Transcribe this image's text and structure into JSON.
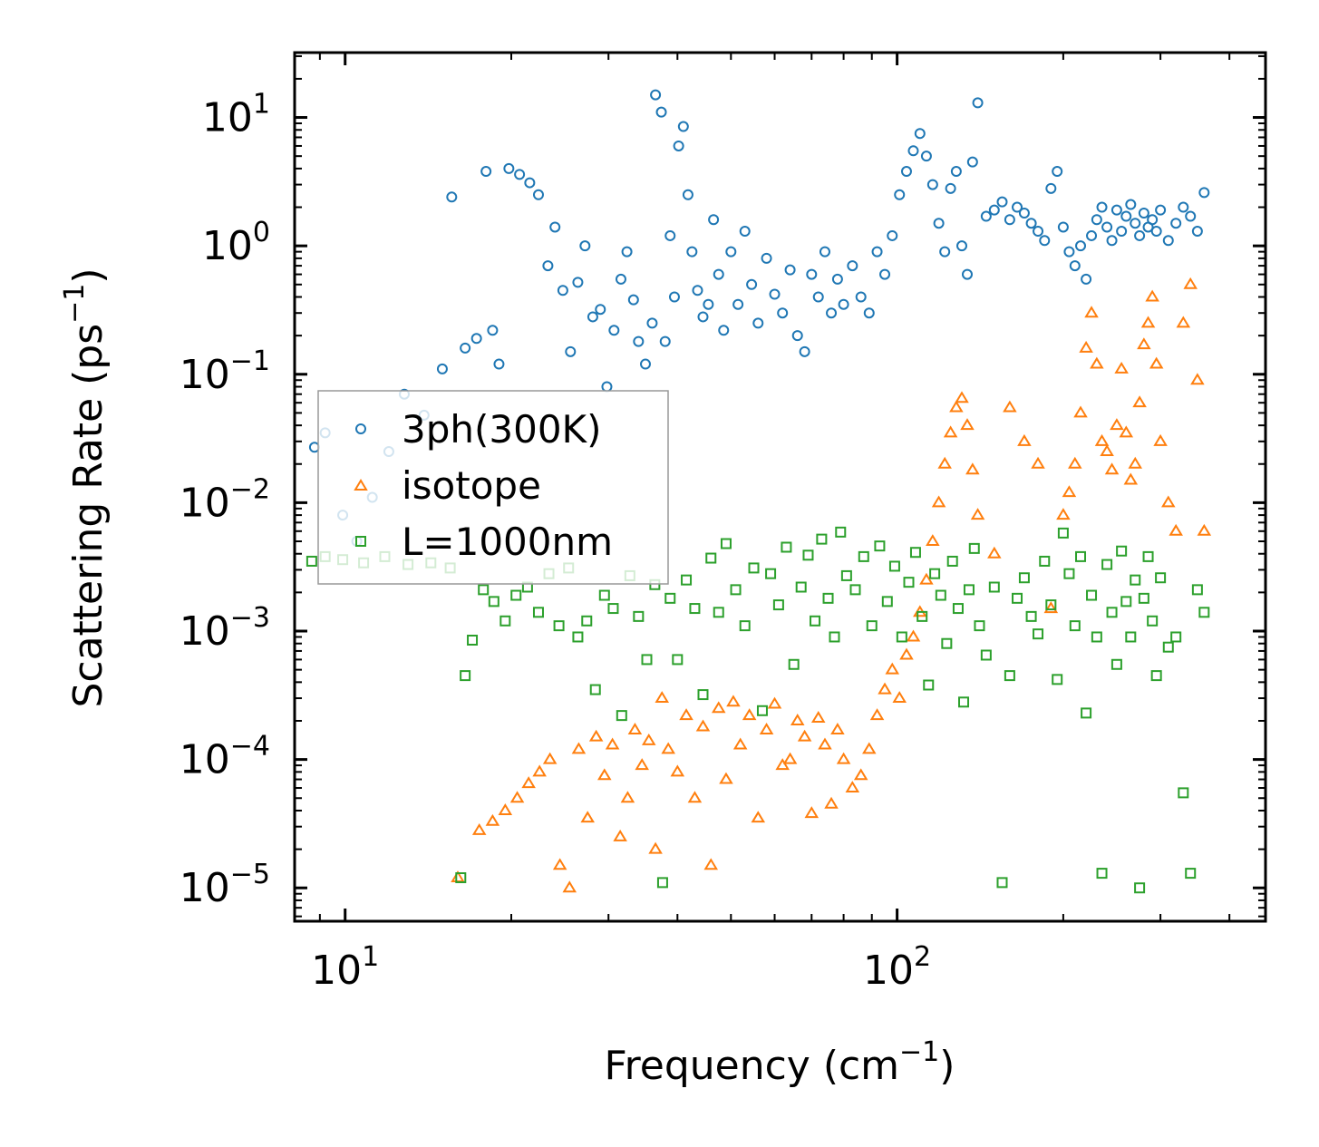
{
  "chart_data": {
    "type": "scatter",
    "title": "",
    "xlabel": "Frequency (cm",
    "xlabel_sup": "−1",
    "xlabel_end": ")",
    "ylabel": "Scattering Rate (ps",
    "ylabel_sup": "−1",
    "ylabel_end": ")",
    "xscale": "log",
    "yscale": "log",
    "xlim": [
      8.1,
      465
    ],
    "ylim": [
      5.5e-06,
      32
    ],
    "x_ticks": [
      {
        "value": 10,
        "base": "10",
        "exp": "1"
      },
      {
        "value": 100,
        "base": "10",
        "exp": "2"
      }
    ],
    "y_ticks": [
      {
        "value": 1e-05,
        "base": "10",
        "exp": "−5"
      },
      {
        "value": 0.0001,
        "base": "10",
        "exp": "−4"
      },
      {
        "value": 0.001,
        "base": "10",
        "exp": "−3"
      },
      {
        "value": 0.01,
        "base": "10",
        "exp": "−2"
      },
      {
        "value": 0.1,
        "base": "10",
        "exp": "−1"
      },
      {
        "value": 1,
        "base": "10",
        "exp": "0"
      },
      {
        "value": 10,
        "base": "10",
        "exp": "1"
      }
    ],
    "legend_position": "center-left",
    "series": [
      {
        "name": "3ph(300K)",
        "marker": "circle",
        "color": "#1f77b4",
        "x": [
          8.8,
          9.2,
          9.9,
          10.5,
          11.2,
          12.0,
          12.8,
          13.9,
          15.0,
          15.6,
          16.5,
          17.3,
          18.0,
          18.5,
          19.0,
          19.8,
          20.7,
          21.6,
          22.4,
          23.3,
          24.0,
          24.8,
          25.6,
          26.4,
          27.2,
          28.1,
          29.0,
          29.8,
          30.7,
          31.6,
          32.4,
          33.3,
          34.0,
          35.0,
          36.0,
          36.5,
          37.4,
          38.0,
          38.8,
          39.5,
          40.2,
          41.0,
          41.8,
          42.5,
          43.5,
          44.5,
          45.5,
          46.5,
          47.5,
          48.5,
          50.0,
          51.5,
          53.0,
          54.5,
          56.0,
          58.0,
          60.0,
          62.0,
          64.0,
          66.0,
          68.0,
          70.0,
          72.0,
          74.0,
          76.0,
          78.0,
          80.0,
          83.0,
          86.0,
          89.0,
          92.0,
          95.0,
          98.0,
          101.0,
          104.0,
          107.0,
          110.0,
          113.0,
          116.0,
          119.0,
          122.0,
          125.0,
          128.0,
          131.0,
          134.0,
          137.0,
          140.0,
          145.0,
          150.0,
          155.0,
          160.0,
          165.0,
          170.0,
          175.0,
          180.0,
          185.0,
          190.0,
          195.0,
          200.0,
          205.0,
          210.0,
          215.0,
          220.0,
          225.0,
          230.0,
          235.0,
          240.0,
          245.0,
          250.0,
          255.0,
          260.0,
          265.0,
          270.0,
          275.0,
          280.0,
          285.0,
          290.0,
          295.0,
          300.0,
          310.0,
          320.0,
          330.0,
          340.0,
          350.0,
          360.0
        ],
        "y": [
          0.027,
          0.035,
          0.008,
          0.005,
          0.011,
          0.025,
          0.07,
          0.048,
          0.11,
          2.4,
          0.16,
          0.19,
          3.8,
          0.22,
          0.12,
          4.0,
          3.6,
          3.1,
          2.5,
          0.7,
          1.4,
          0.45,
          0.15,
          0.52,
          1.0,
          0.28,
          0.32,
          0.08,
          0.22,
          0.55,
          0.9,
          0.38,
          0.18,
          0.12,
          0.25,
          15.0,
          11.0,
          0.18,
          1.2,
          0.4,
          6.0,
          8.5,
          2.5,
          0.9,
          0.45,
          0.28,
          0.35,
          1.6,
          0.6,
          0.22,
          0.9,
          0.35,
          1.3,
          0.5,
          0.25,
          0.8,
          0.42,
          0.3,
          0.65,
          0.2,
          0.15,
          0.6,
          0.4,
          0.9,
          0.3,
          0.55,
          0.35,
          0.7,
          0.4,
          0.3,
          0.9,
          0.6,
          1.2,
          2.5,
          3.8,
          5.5,
          7.5,
          5.0,
          3.0,
          1.5,
          0.9,
          2.8,
          3.8,
          1.0,
          0.6,
          4.5,
          13.0,
          1.7,
          1.9,
          2.2,
          1.6,
          2.0,
          1.8,
          1.5,
          1.3,
          1.1,
          2.8,
          3.8,
          1.4,
          0.9,
          0.7,
          1.0,
          0.55,
          1.2,
          1.6,
          2.0,
          1.4,
          1.1,
          1.9,
          1.3,
          1.7,
          2.1,
          1.5,
          1.2,
          1.8,
          1.4,
          1.6,
          1.3,
          1.9,
          1.1,
          1.5,
          2.0,
          1.7,
          1.3,
          2.6
        ]
      },
      {
        "name": "isotope",
        "marker": "triangle",
        "color": "#ff7f0e",
        "x": [
          16.0,
          17.5,
          18.5,
          19.5,
          20.5,
          21.5,
          22.5,
          23.5,
          24.5,
          25.5,
          26.5,
          27.5,
          28.5,
          29.5,
          30.5,
          31.5,
          32.5,
          33.5,
          34.5,
          35.5,
          36.5,
          37.5,
          38.5,
          40.0,
          41.5,
          43.0,
          44.5,
          46.0,
          47.5,
          49.0,
          50.5,
          52.0,
          54.0,
          56.0,
          58.0,
          60.0,
          62.0,
          64.0,
          66.0,
          68.0,
          70.0,
          72.0,
          74.0,
          76.0,
          78.0,
          80.0,
          83.0,
          86.0,
          89.0,
          92.0,
          95.0,
          98.0,
          101.0,
          104.0,
          107.0,
          110.0,
          113.0,
          116.0,
          119.0,
          122.0,
          125.0,
          128.0,
          131.0,
          134.0,
          137.0,
          140.0,
          150.0,
          160.0,
          170.0,
          180.0,
          190.0,
          200.0,
          205.0,
          210.0,
          215.0,
          220.0,
          225.0,
          230.0,
          235.0,
          240.0,
          245.0,
          250.0,
          255.0,
          260.0,
          265.0,
          270.0,
          275.0,
          280.0,
          285.0,
          290.0,
          295.0,
          300.0,
          310.0,
          320.0,
          330.0,
          340.0,
          350.0,
          360.0
        ],
        "y": [
          1.2e-05,
          2.8e-05,
          3.3e-05,
          4e-05,
          5e-05,
          6.5e-05,
          8e-05,
          0.0001,
          1.5e-05,
          1e-05,
          0.00012,
          3.5e-05,
          0.00015,
          7.5e-05,
          0.00013,
          2.5e-05,
          5e-05,
          0.00017,
          9e-05,
          0.00014,
          2e-05,
          0.0003,
          0.00012,
          8e-05,
          0.00022,
          5e-05,
          0.00018,
          1.5e-05,
          0.00025,
          7e-05,
          0.00028,
          0.00013,
          0.00022,
          3.5e-05,
          0.00017,
          0.00027,
          9e-05,
          0.0001,
          0.0002,
          0.00015,
          3.8e-05,
          0.00021,
          0.00013,
          4.5e-05,
          0.00017,
          0.0001,
          6e-05,
          7.5e-05,
          0.00012,
          0.00022,
          0.00035,
          0.0005,
          0.0003,
          0.00065,
          0.0009,
          0.0014,
          0.0025,
          0.005,
          0.01,
          0.02,
          0.035,
          0.055,
          0.065,
          0.04,
          0.018,
          0.008,
          0.004,
          0.055,
          0.03,
          0.02,
          0.0015,
          0.008,
          0.012,
          0.02,
          0.05,
          0.16,
          0.3,
          0.12,
          0.03,
          0.025,
          0.018,
          0.04,
          0.11,
          0.035,
          0.015,
          0.02,
          0.06,
          0.17,
          0.25,
          0.4,
          0.12,
          0.03,
          0.01,
          0.006,
          0.25,
          0.5,
          0.09,
          0.006
        ]
      },
      {
        "name": "L=1000nm",
        "marker": "square",
        "color": "#2ca02c",
        "x": [
          8.7,
          9.2,
          9.9,
          10.8,
          11.8,
          13.0,
          14.3,
          15.5,
          16.2,
          16.5,
          17.0,
          17.8,
          18.6,
          19.5,
          20.4,
          21.4,
          22.4,
          23.4,
          24.4,
          25.4,
          26.4,
          27.4,
          28.4,
          29.5,
          30.6,
          31.7,
          32.8,
          34.0,
          35.2,
          36.4,
          37.6,
          38.8,
          40.0,
          41.5,
          43.0,
          44.5,
          46.0,
          47.5,
          49.0,
          51.0,
          53.0,
          55.0,
          57.0,
          59.0,
          61.0,
          63.0,
          65.0,
          67.0,
          69.0,
          71.0,
          73.0,
          75.0,
          77.0,
          79.0,
          81.0,
          84.0,
          87.0,
          90.0,
          93.0,
          96.0,
          99.0,
          102.0,
          105.0,
          108.0,
          111.0,
          114.0,
          117.0,
          120.0,
          123.0,
          126.0,
          129.0,
          132.0,
          135.0,
          138.0,
          141.0,
          145.0,
          150.0,
          155.0,
          160.0,
          165.0,
          170.0,
          175.0,
          180.0,
          185.0,
          190.0,
          195.0,
          200.0,
          205.0,
          210.0,
          215.0,
          220.0,
          225.0,
          230.0,
          235.0,
          240.0,
          245.0,
          250.0,
          255.0,
          260.0,
          265.0,
          270.0,
          275.0,
          280.0,
          285.0,
          290.0,
          295.0,
          300.0,
          310.0,
          320.0,
          330.0,
          340.0,
          350.0,
          360.0
        ],
        "y": [
          0.0035,
          0.0038,
          0.0036,
          0.0034,
          0.0038,
          0.0033,
          0.0034,
          0.0031,
          1.2e-05,
          0.00045,
          0.00085,
          0.0021,
          0.0017,
          0.0012,
          0.0019,
          0.0022,
          0.0014,
          0.0028,
          0.0011,
          0.0031,
          0.0009,
          0.0012,
          0.00035,
          0.0019,
          0.0015,
          0.00022,
          0.0027,
          0.0013,
          0.0006,
          0.0023,
          1.1e-05,
          0.0018,
          0.0006,
          0.0025,
          0.0015,
          0.00032,
          0.0037,
          0.0014,
          0.0048,
          0.0021,
          0.0011,
          0.0031,
          0.00024,
          0.0028,
          0.0016,
          0.0045,
          0.00055,
          0.0022,
          0.0039,
          0.0012,
          0.0052,
          0.0018,
          0.0009,
          0.0059,
          0.0027,
          0.0021,
          0.0038,
          0.0011,
          0.0046,
          0.0017,
          0.0032,
          0.0009,
          0.0024,
          0.0041,
          0.0013,
          0.00038,
          0.0028,
          0.0019,
          0.0008,
          0.0035,
          0.0015,
          0.00028,
          0.0021,
          0.0044,
          0.0011,
          0.00065,
          0.0022,
          1.1e-05,
          0.00045,
          0.0018,
          0.0026,
          0.0013,
          0.00095,
          0.0035,
          0.0016,
          0.00042,
          0.0058,
          0.0028,
          0.0011,
          0.0038,
          0.00023,
          0.0019,
          0.0009,
          1.3e-05,
          0.0033,
          0.0014,
          0.00055,
          0.0042,
          0.0017,
          0.0009,
          0.0025,
          1e-05,
          0.0018,
          0.0038,
          0.0012,
          0.00045,
          0.0026,
          0.00075,
          0.0009,
          5.5e-05,
          1.3e-05,
          0.0021,
          0.0014
        ]
      }
    ]
  }
}
